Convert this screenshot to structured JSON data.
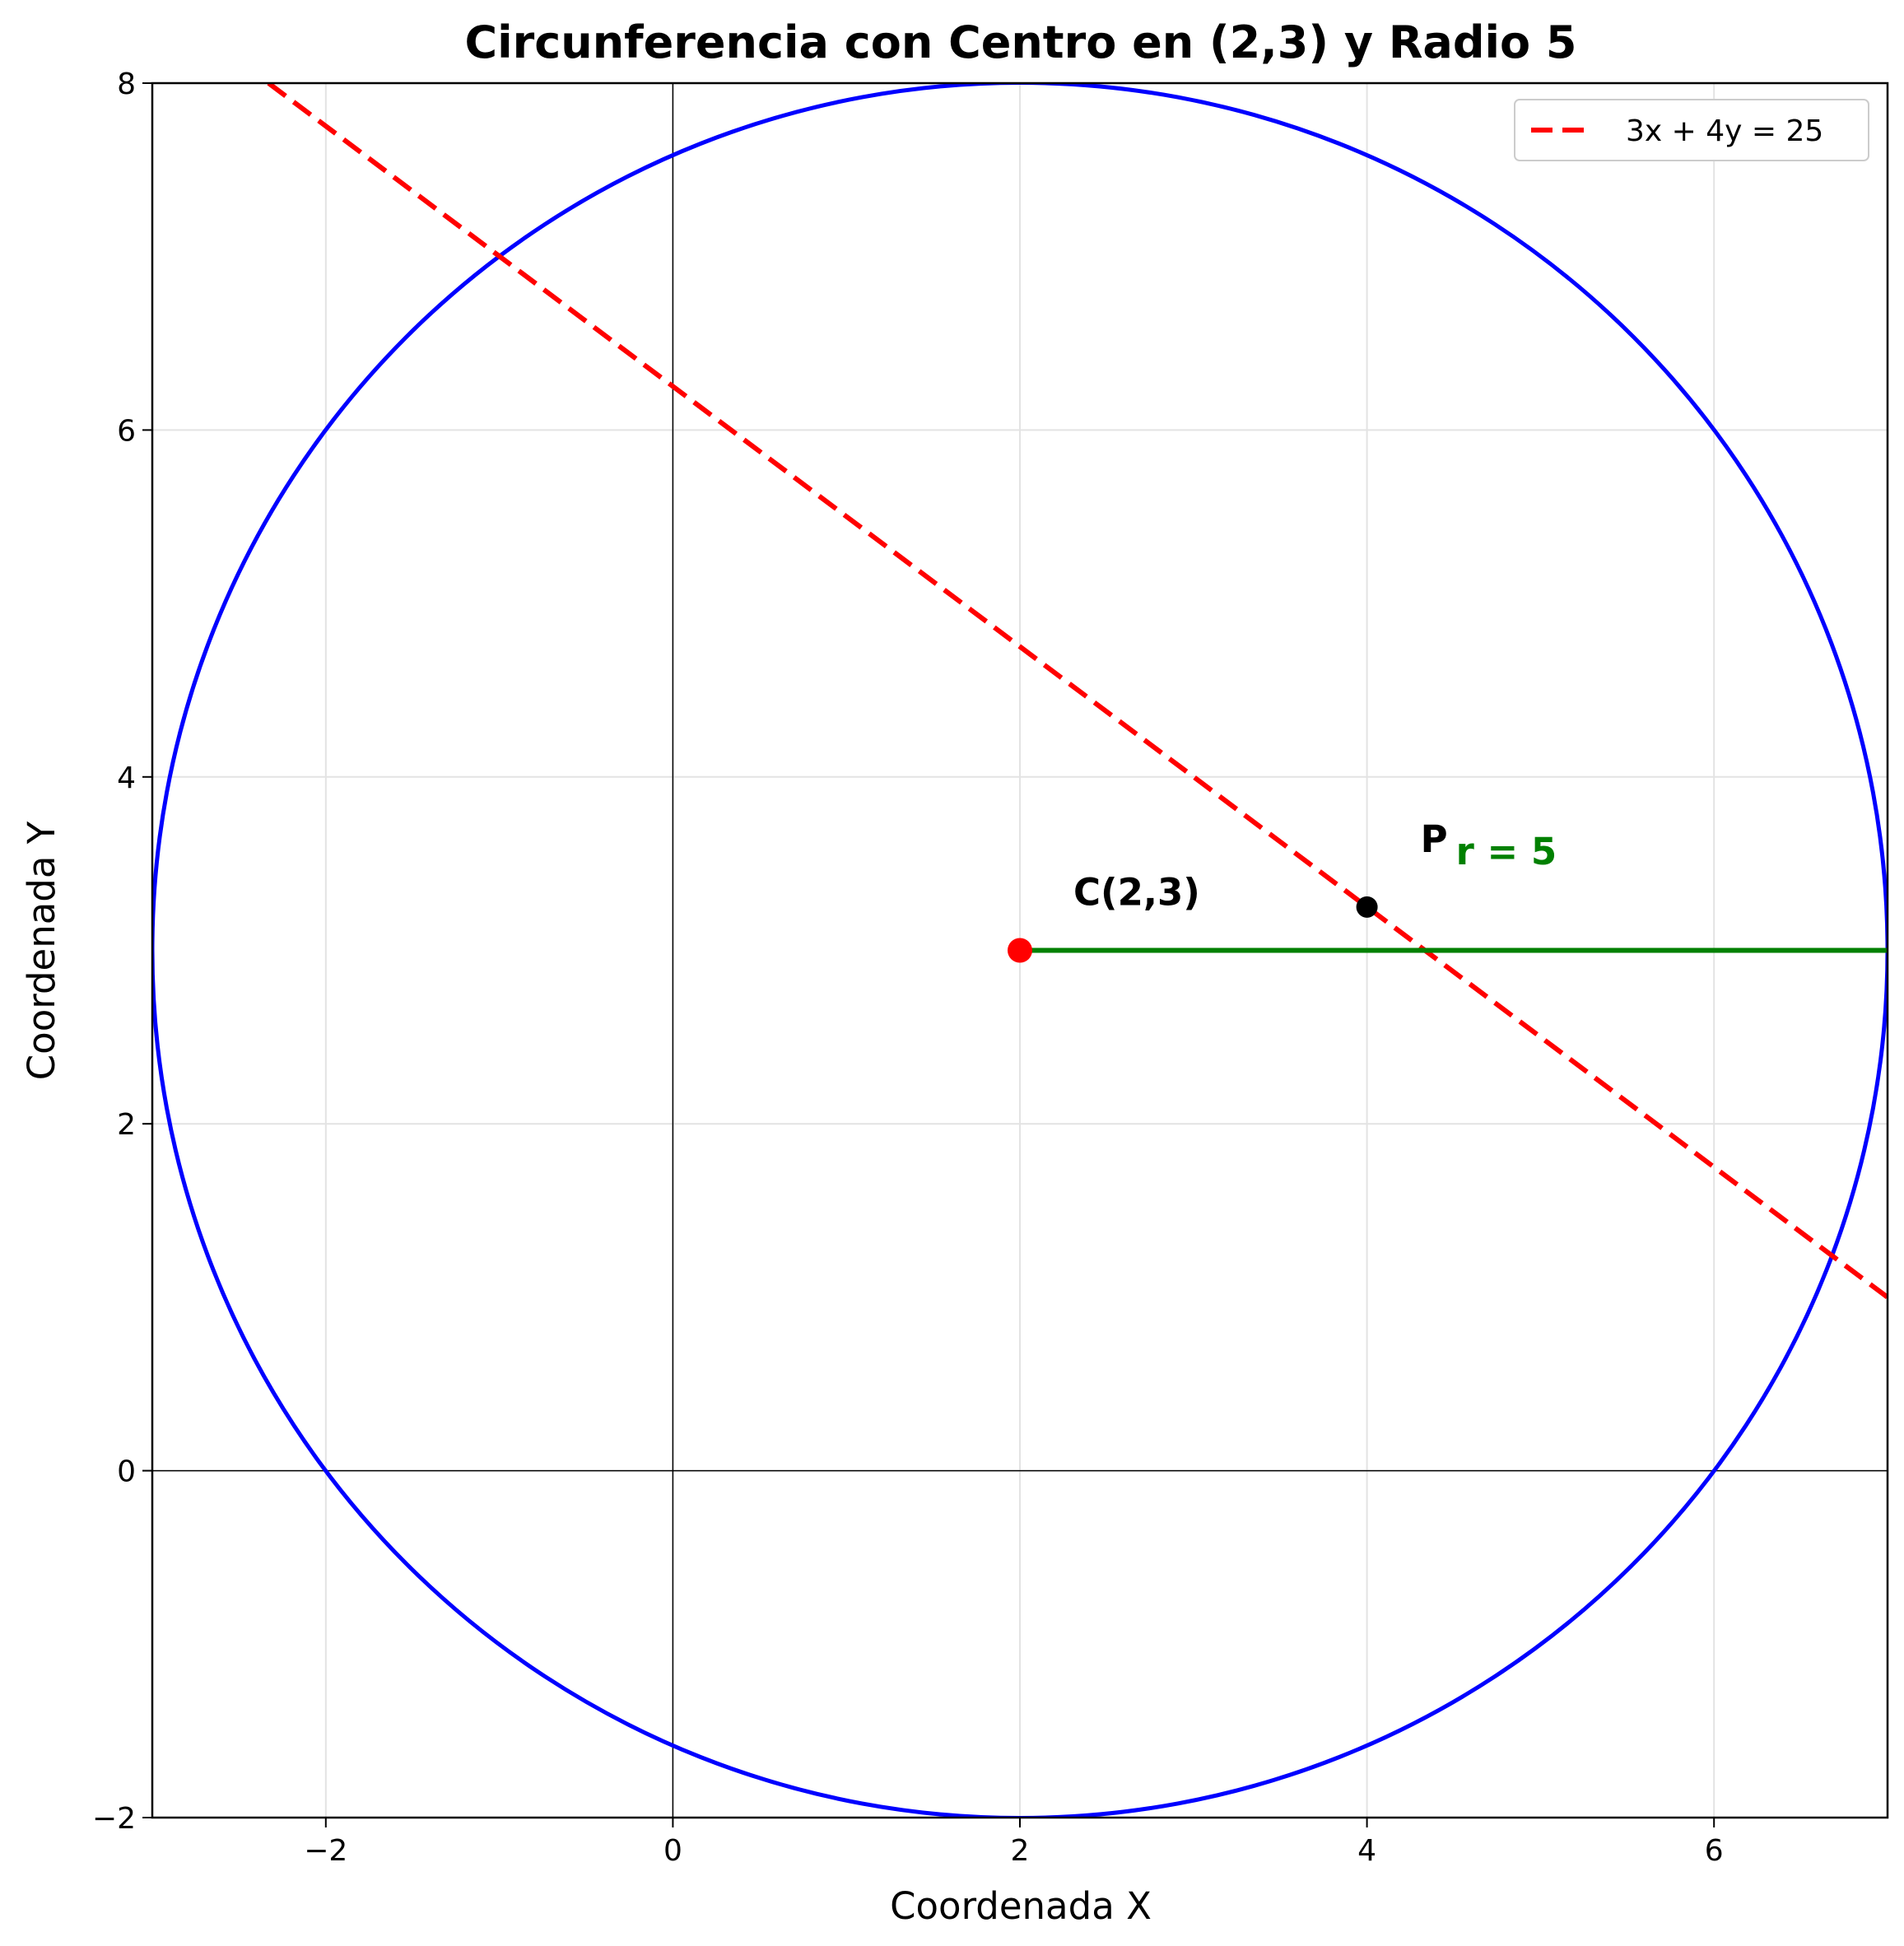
{
  "chart_data": {
    "type": "line",
    "title": "Circunferencia con Centro en (2,3) y Radio 5",
    "xlabel": "Coordenada X",
    "ylabel": "Coordenada Y",
    "xlim": [
      -3,
      7
    ],
    "ylim": [
      -2,
      8
    ],
    "xticks": [
      -2,
      0,
      2,
      4,
      6
    ],
    "yticks": [
      -2,
      0,
      2,
      4,
      6,
      8
    ],
    "xtick_labels": [
      "−2",
      "0",
      "2",
      "4",
      "6"
    ],
    "ytick_labels": [
      "−2",
      "0",
      "2",
      "4",
      "6",
      "8"
    ],
    "grid": true,
    "legend_position": "top-right",
    "circle": {
      "center": [
        2,
        3
      ],
      "radius": 5,
      "color": "#0000ff"
    },
    "center_point": {
      "x": 2,
      "y": 3,
      "label": "C(2,3)",
      "color": "#ff0000"
    },
    "point_p": {
      "x": 4,
      "y": 3.25,
      "label": "P",
      "color": "#000000"
    },
    "radius_segment": {
      "from": [
        2,
        3
      ],
      "to": [
        7,
        3
      ],
      "label": "r = 5",
      "color": "#008000"
    },
    "series": [
      {
        "name": "3x + 4y = 25",
        "style": "dashed",
        "color": "#ff0000",
        "x": [
          -2.33,
          7
        ],
        "y": [
          8,
          1
        ]
      }
    ],
    "reference_lines": {
      "x0": true,
      "y0": true
    }
  }
}
